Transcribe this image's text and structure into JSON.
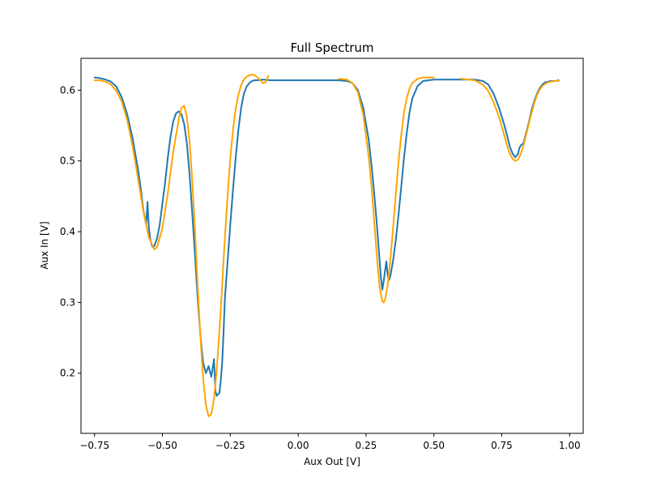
{
  "chart_data": {
    "type": "line",
    "title": "Full Spectrum",
    "xlabel": "Aux Out [V]",
    "ylabel": "Aux In [V]",
    "xlim": [
      -0.8,
      1.05
    ],
    "ylim": [
      0.115,
      0.645
    ],
    "x_ticks": [
      -0.75,
      -0.5,
      -0.25,
      0.0,
      0.25,
      0.5,
      0.75,
      1.0
    ],
    "x_tick_labels": [
      "−0.75",
      "−0.50",
      "−0.25",
      "0.00",
      "0.25",
      "0.50",
      "0.75",
      "1.00"
    ],
    "y_ticks": [
      0.2,
      0.3,
      0.4,
      0.5,
      0.6
    ],
    "y_tick_labels": [
      "0.2",
      "0.3",
      "0.4",
      "0.5",
      "0.6"
    ],
    "grid": false,
    "legend": "none",
    "series": [
      {
        "color": "#1f77b4",
        "x": [
          -0.75,
          -0.73,
          -0.71,
          -0.69,
          -0.67,
          -0.65,
          -0.63,
          -0.61,
          -0.59,
          -0.58,
          -0.575,
          -0.57,
          -0.565,
          -0.56,
          -0.555,
          -0.55,
          -0.545,
          -0.54,
          -0.535,
          -0.53,
          -0.52,
          -0.51,
          -0.5,
          -0.49,
          -0.48,
          -0.47,
          -0.46,
          -0.45,
          -0.44,
          -0.43,
          -0.42,
          -0.41,
          -0.4,
          -0.39,
          -0.38,
          -0.37,
          -0.36,
          -0.35,
          -0.34,
          -0.33,
          -0.32,
          -0.31,
          -0.305,
          -0.3,
          -0.295,
          -0.29,
          -0.285,
          -0.28,
          -0.275,
          -0.27,
          -0.26,
          -0.25,
          -0.24,
          -0.23,
          -0.22,
          -0.21,
          -0.2,
          -0.19,
          -0.18,
          -0.17,
          -0.16,
          -0.15,
          -0.13,
          -0.1,
          -0.05,
          0.0,
          0.05,
          0.1,
          0.15,
          0.18,
          0.2,
          0.22,
          0.24,
          0.26,
          0.27,
          0.28,
          0.29,
          0.3,
          0.305,
          0.31,
          0.315,
          0.32,
          0.325,
          0.33,
          0.335,
          0.34,
          0.35,
          0.36,
          0.37,
          0.38,
          0.39,
          0.4,
          0.41,
          0.42,
          0.44,
          0.46,
          0.5,
          0.55,
          0.6,
          0.65,
          0.68,
          0.7,
          0.72,
          0.74,
          0.76,
          0.77,
          0.78,
          0.79,
          0.8,
          0.81,
          0.815,
          0.82,
          0.83,
          0.84,
          0.85,
          0.86,
          0.87,
          0.88,
          0.89,
          0.9,
          0.91,
          0.92,
          0.93,
          0.95,
          0.96
        ],
        "y": [
          0.618,
          0.617,
          0.615,
          0.612,
          0.605,
          0.59,
          0.566,
          0.532,
          0.488,
          0.462,
          0.445,
          0.43,
          0.42,
          0.41,
          0.442,
          0.405,
          0.39,
          0.382,
          0.378,
          0.38,
          0.39,
          0.41,
          0.44,
          0.47,
          0.505,
          0.535,
          0.556,
          0.567,
          0.57,
          0.566,
          0.552,
          0.525,
          0.48,
          0.425,
          0.365,
          0.305,
          0.252,
          0.215,
          0.2,
          0.21,
          0.195,
          0.22,
          0.175,
          0.168,
          0.17,
          0.172,
          0.19,
          0.215,
          0.255,
          0.305,
          0.358,
          0.41,
          0.46,
          0.505,
          0.545,
          0.575,
          0.595,
          0.605,
          0.61,
          0.613,
          0.614,
          0.614,
          0.615,
          0.614,
          0.614,
          0.614,
          0.614,
          0.614,
          0.614,
          0.613,
          0.61,
          0.6,
          0.575,
          0.53,
          0.495,
          0.455,
          0.41,
          0.36,
          0.335,
          0.318,
          0.33,
          0.345,
          0.358,
          0.338,
          0.332,
          0.338,
          0.36,
          0.39,
          0.425,
          0.465,
          0.505,
          0.54,
          0.568,
          0.588,
          0.606,
          0.613,
          0.615,
          0.615,
          0.615,
          0.615,
          0.613,
          0.608,
          0.595,
          0.575,
          0.55,
          0.535,
          0.52,
          0.51,
          0.505,
          0.51,
          0.518,
          0.522,
          0.525,
          0.54,
          0.555,
          0.572,
          0.585,
          0.595,
          0.603,
          0.608,
          0.611,
          0.612,
          0.613,
          0.613,
          0.614
        ]
      },
      {
        "color": "#ffa500",
        "x": [
          -0.75,
          -0.73,
          -0.71,
          -0.69,
          -0.67,
          -0.65,
          -0.63,
          -0.61,
          -0.59,
          -0.57,
          -0.55,
          -0.53,
          -0.52,
          -0.5,
          -0.48,
          -0.46,
          -0.44,
          -0.43,
          -0.42,
          -0.41,
          -0.4,
          -0.39,
          -0.38,
          -0.37,
          -0.36,
          -0.35,
          -0.34,
          -0.33,
          -0.32,
          -0.31,
          -0.3,
          -0.29,
          -0.28,
          -0.275,
          -0.27,
          -0.26,
          -0.25,
          -0.24,
          -0.23,
          -0.22,
          -0.21,
          -0.2,
          -0.19,
          -0.18,
          -0.17,
          -0.16,
          -0.15,
          -0.14,
          -0.13,
          -0.12,
          -0.11
        ],
        "y": [
          0.614,
          0.614,
          0.612,
          0.608,
          0.599,
          0.584,
          0.558,
          0.521,
          0.475,
          0.428,
          0.392,
          0.375,
          0.378,
          0.405,
          0.455,
          0.513,
          0.558,
          0.575,
          0.578,
          0.562,
          0.527,
          0.471,
          0.4,
          0.322,
          0.25,
          0.192,
          0.155,
          0.139,
          0.142,
          0.164,
          0.205,
          0.26,
          0.323,
          0.358,
          0.39,
          0.451,
          0.503,
          0.544,
          0.574,
          0.594,
          0.607,
          0.615,
          0.619,
          0.621,
          0.622,
          0.621,
          0.618,
          0.614,
          0.61,
          0.611,
          0.62
        ]
      },
      {
        "color": "#ffa500",
        "x": [
          0.15,
          0.18,
          0.2,
          0.22,
          0.24,
          0.26,
          0.27,
          0.28,
          0.29,
          0.3,
          0.31,
          0.315,
          0.32,
          0.33,
          0.34,
          0.35,
          0.36,
          0.37,
          0.38,
          0.39,
          0.4,
          0.41,
          0.42,
          0.44,
          0.46,
          0.48,
          0.5
        ],
        "y": [
          0.616,
          0.615,
          0.61,
          0.597,
          0.565,
          0.506,
          0.465,
          0.416,
          0.365,
          0.322,
          0.302,
          0.3,
          0.304,
          0.325,
          0.362,
          0.407,
          0.455,
          0.5,
          0.538,
          0.568,
          0.589,
          0.602,
          0.61,
          0.616,
          0.618,
          0.618,
          0.618
        ]
      },
      {
        "color": "#ffa500",
        "x": [
          0.6,
          0.65,
          0.68,
          0.7,
          0.72,
          0.74,
          0.75,
          0.76,
          0.77,
          0.78,
          0.79,
          0.8,
          0.81,
          0.82,
          0.83,
          0.84,
          0.85,
          0.86,
          0.87,
          0.88,
          0.89,
          0.9,
          0.91,
          0.92,
          0.93,
          0.95,
          0.96
        ],
        "y": [
          0.616,
          0.614,
          0.608,
          0.599,
          0.583,
          0.562,
          0.549,
          0.535,
          0.521,
          0.51,
          0.503,
          0.5,
          0.502,
          0.51,
          0.522,
          0.537,
          0.553,
          0.568,
          0.582,
          0.593,
          0.601,
          0.606,
          0.609,
          0.611,
          0.612,
          0.613,
          0.613
        ]
      }
    ]
  }
}
